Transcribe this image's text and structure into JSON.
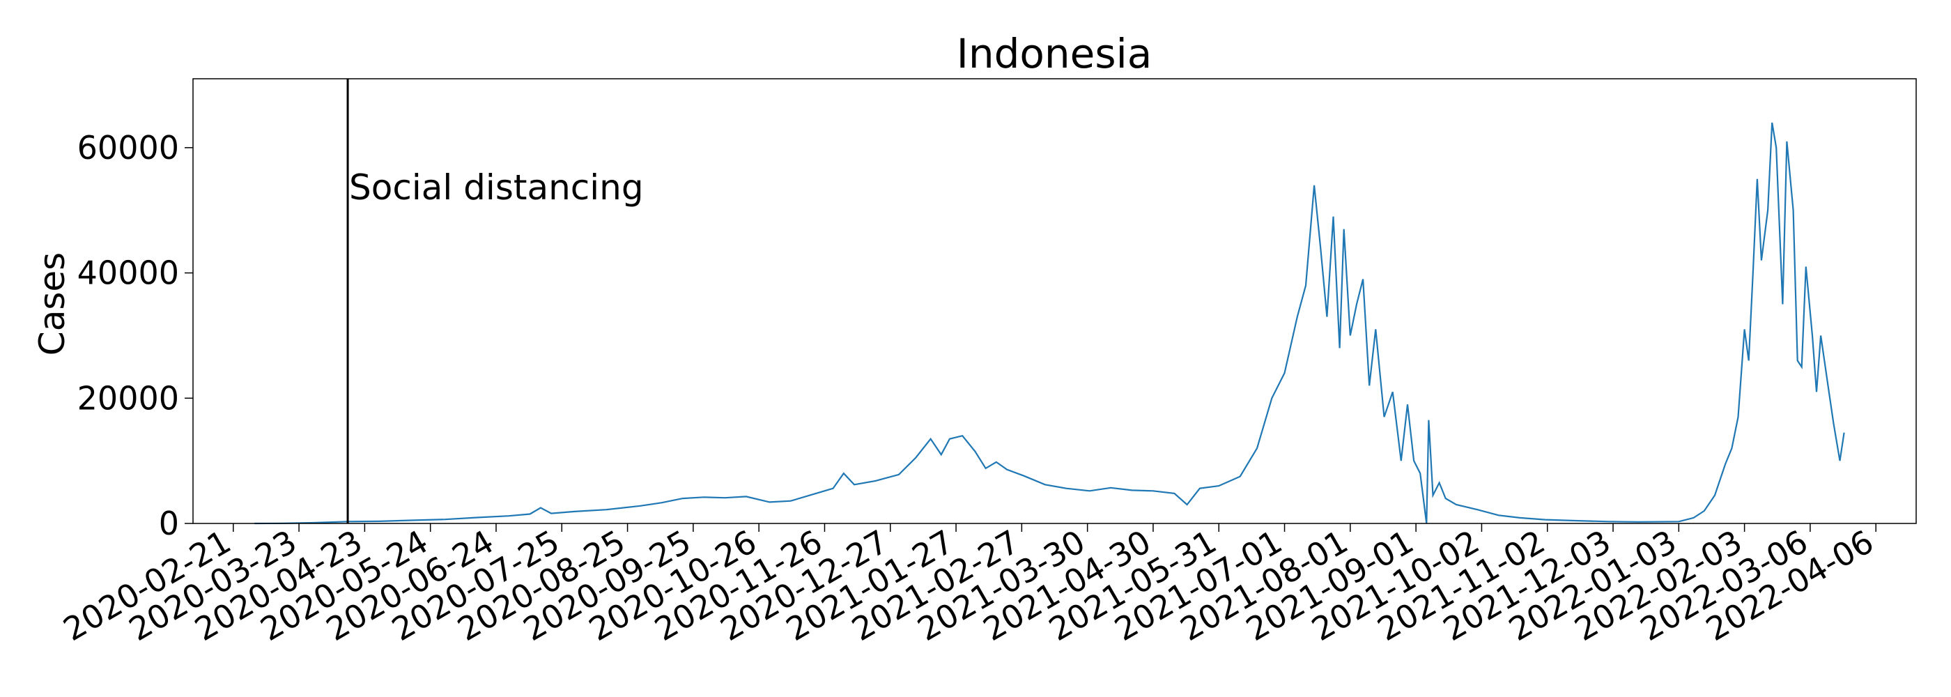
{
  "chart_data": {
    "type": "line",
    "title": "Indonesia",
    "xlabel": "",
    "ylabel": "Cases",
    "ylim": [
      0,
      71000
    ],
    "xlim": [
      "2020-02-02",
      "2022-04-25"
    ],
    "y_ticks": [
      0,
      20000,
      40000,
      60000
    ],
    "x_ticks": [
      "2020-02-21",
      "2020-03-23",
      "2020-04-23",
      "2020-05-24",
      "2020-06-24",
      "2020-07-25",
      "2020-08-25",
      "2020-09-25",
      "2020-10-26",
      "2020-11-26",
      "2020-12-27",
      "2021-01-27",
      "2021-02-27",
      "2021-03-30",
      "2021-04-30",
      "2021-05-31",
      "2021-07-01",
      "2021-08-01",
      "2021-09-01",
      "2021-10-02",
      "2021-11-02",
      "2021-12-03",
      "2022-01-03",
      "2022-02-03",
      "2022-03-06",
      "2022-04-06"
    ],
    "grid": false,
    "line_color": "#1f77b4",
    "annotation": {
      "x": "2020-04-15",
      "label": "Social distancing",
      "color": "#000000"
    },
    "series": [
      {
        "points": [
          [
            "2020-03-02",
            0
          ],
          [
            "2020-03-15",
            20
          ],
          [
            "2020-03-30",
            110
          ],
          [
            "2020-04-15",
            300
          ],
          [
            "2020-04-30",
            350
          ],
          [
            "2020-05-15",
            500
          ],
          [
            "2020-05-31",
            650
          ],
          [
            "2020-06-15",
            950
          ],
          [
            "2020-06-30",
            1200
          ],
          [
            "2020-07-10",
            1500
          ],
          [
            "2020-07-15",
            2500
          ],
          [
            "2020-07-20",
            1600
          ],
          [
            "2020-07-31",
            1900
          ],
          [
            "2020-08-15",
            2200
          ],
          [
            "2020-08-31",
            2800
          ],
          [
            "2020-09-10",
            3300
          ],
          [
            "2020-09-20",
            4000
          ],
          [
            "2020-09-30",
            4200
          ],
          [
            "2020-10-10",
            4100
          ],
          [
            "2020-10-20",
            4300
          ],
          [
            "2020-10-31",
            3400
          ],
          [
            "2020-11-10",
            3600
          ],
          [
            "2020-11-20",
            4600
          ],
          [
            "2020-11-30",
            5600
          ],
          [
            "2020-12-05",
            8000
          ],
          [
            "2020-12-10",
            6200
          ],
          [
            "2020-12-20",
            6800
          ],
          [
            "2020-12-31",
            7800
          ],
          [
            "2021-01-08",
            10500
          ],
          [
            "2021-01-15",
            13500
          ],
          [
            "2021-01-20",
            11000
          ],
          [
            "2021-01-24",
            13500
          ],
          [
            "2021-01-30",
            14000
          ],
          [
            "2021-02-05",
            11500
          ],
          [
            "2021-02-10",
            8800
          ],
          [
            "2021-02-15",
            9800
          ],
          [
            "2021-02-20",
            8600
          ],
          [
            "2021-02-28",
            7600
          ],
          [
            "2021-03-10",
            6200
          ],
          [
            "2021-03-20",
            5600
          ],
          [
            "2021-03-31",
            5200
          ],
          [
            "2021-04-10",
            5700
          ],
          [
            "2021-04-20",
            5300
          ],
          [
            "2021-04-30",
            5200
          ],
          [
            "2021-05-10",
            4800
          ],
          [
            "2021-05-16",
            3000
          ],
          [
            "2021-05-22",
            5600
          ],
          [
            "2021-05-31",
            6000
          ],
          [
            "2021-06-10",
            7500
          ],
          [
            "2021-06-18",
            12000
          ],
          [
            "2021-06-25",
            20000
          ],
          [
            "2021-07-01",
            24000
          ],
          [
            "2021-07-07",
            33000
          ],
          [
            "2021-07-11",
            38000
          ],
          [
            "2021-07-15",
            54000
          ],
          [
            "2021-07-18",
            44000
          ],
          [
            "2021-07-21",
            33000
          ],
          [
            "2021-07-24",
            49000
          ],
          [
            "2021-07-27",
            28000
          ],
          [
            "2021-07-29",
            47000
          ],
          [
            "2021-08-01",
            30000
          ],
          [
            "2021-08-04",
            35000
          ],
          [
            "2021-08-07",
            39000
          ],
          [
            "2021-08-10",
            22000
          ],
          [
            "2021-08-13",
            31000
          ],
          [
            "2021-08-17",
            17000
          ],
          [
            "2021-08-21",
            21000
          ],
          [
            "2021-08-25",
            10000
          ],
          [
            "2021-08-28",
            19000
          ],
          [
            "2021-08-31",
            10000
          ],
          [
            "2021-09-03",
            8000
          ],
          [
            "2021-09-06",
            0
          ],
          [
            "2021-09-07",
            16500
          ],
          [
            "2021-09-09",
            4500
          ],
          [
            "2021-09-12",
            6500
          ],
          [
            "2021-09-15",
            4000
          ],
          [
            "2021-09-20",
            3000
          ],
          [
            "2021-09-30",
            2200
          ],
          [
            "2021-10-10",
            1300
          ],
          [
            "2021-10-20",
            900
          ],
          [
            "2021-11-01",
            600
          ],
          [
            "2021-11-15",
            450
          ],
          [
            "2021-12-01",
            300
          ],
          [
            "2021-12-15",
            250
          ],
          [
            "2022-01-03",
            300
          ],
          [
            "2022-01-10",
            900
          ],
          [
            "2022-01-15",
            2000
          ],
          [
            "2022-01-20",
            4500
          ],
          [
            "2022-01-25",
            9500
          ],
          [
            "2022-01-28",
            12000
          ],
          [
            "2022-01-31",
            17000
          ],
          [
            "2022-02-03",
            31000
          ],
          [
            "2022-02-05",
            26000
          ],
          [
            "2022-02-07",
            40000
          ],
          [
            "2022-02-09",
            55000
          ],
          [
            "2022-02-11",
            42000
          ],
          [
            "2022-02-14",
            50000
          ],
          [
            "2022-02-16",
            64000
          ],
          [
            "2022-02-18",
            60000
          ],
          [
            "2022-02-21",
            35000
          ],
          [
            "2022-02-23",
            61000
          ],
          [
            "2022-02-26",
            50000
          ],
          [
            "2022-02-28",
            26000
          ],
          [
            "2022-03-02",
            25000
          ],
          [
            "2022-03-04",
            41000
          ],
          [
            "2022-03-07",
            30000
          ],
          [
            "2022-03-09",
            21000
          ],
          [
            "2022-03-11",
            30000
          ],
          [
            "2022-03-14",
            23000
          ],
          [
            "2022-03-17",
            16000
          ],
          [
            "2022-03-20",
            10000
          ],
          [
            "2022-03-22",
            14500
          ]
        ]
      }
    ]
  }
}
